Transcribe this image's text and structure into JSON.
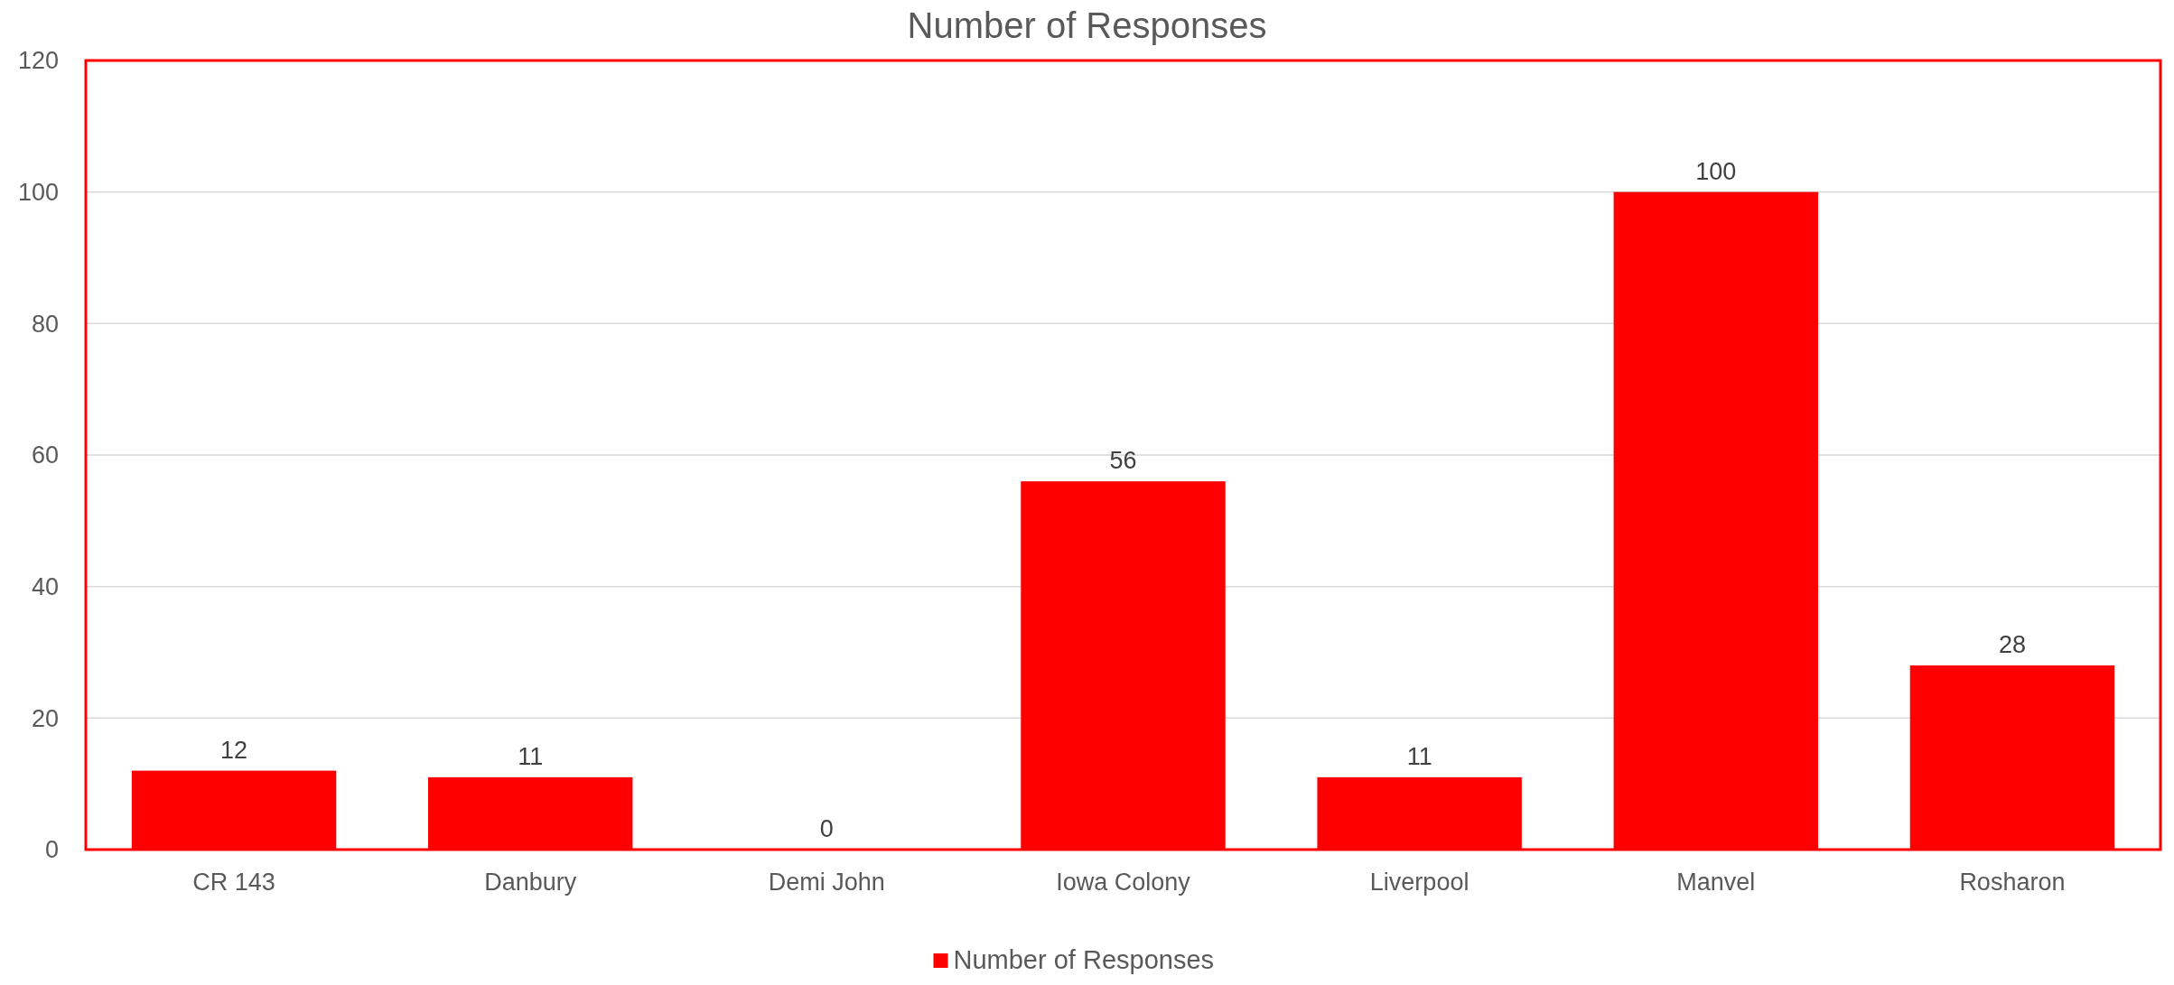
{
  "chart_data": {
    "type": "bar",
    "title": "Number of Responses",
    "categories": [
      "CR 143",
      "Danbury",
      "Demi John",
      "Iowa Colony",
      "Liverpool",
      "Manvel",
      "Rosharon"
    ],
    "series": [
      {
        "name": "Number of Responses",
        "color": "#ff0000",
        "values": [
          12,
          11,
          0,
          56,
          11,
          100,
          28
        ]
      }
    ],
    "ylim": [
      0,
      120
    ],
    "yticks": [
      0,
      20,
      40,
      60,
      80,
      100,
      120
    ],
    "grid": "y",
    "legend": "bottom",
    "data_labels": true
  }
}
